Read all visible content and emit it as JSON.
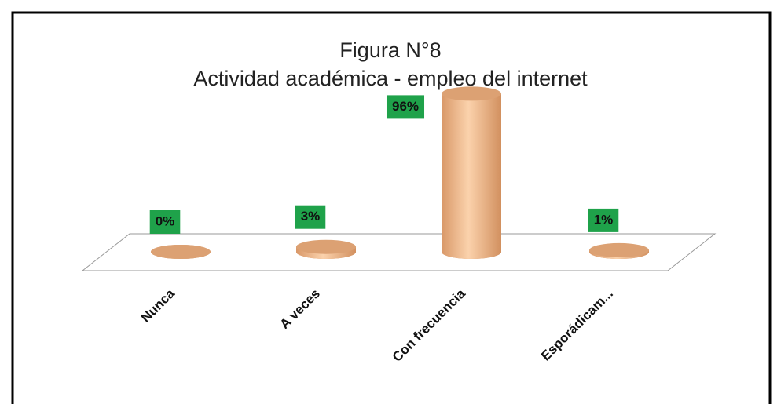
{
  "chart_data": {
    "type": "bar3d",
    "title": "Figura N°8",
    "subtitle": "Actividad académica - empleo del internet",
    "categories": [
      "Nunca",
      "A veces",
      "Con frecuencia",
      "Esporádicam..."
    ],
    "values": [
      0,
      3,
      96,
      1
    ],
    "value_labels": [
      "0%",
      "3%",
      "96%",
      "1%"
    ],
    "color": "#f2b98a",
    "label_color": "#1fa24a"
  }
}
